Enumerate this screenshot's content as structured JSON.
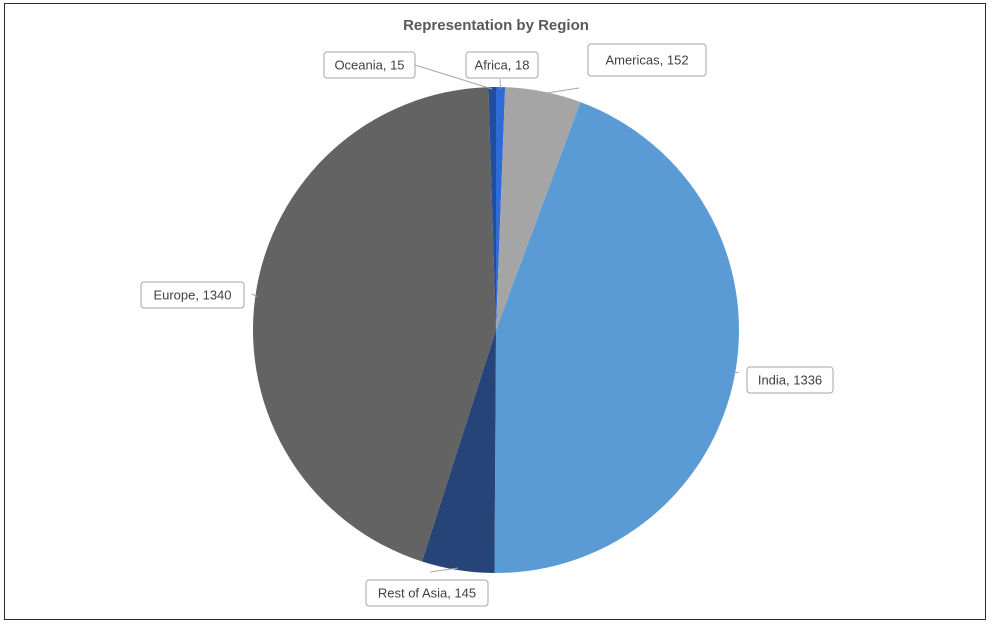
{
  "chart_data": {
    "type": "pie",
    "title": "Representation by Region",
    "legend": "none",
    "slices": [
      {
        "label": "Africa",
        "value": 18,
        "color": "#2f6bd6",
        "data_label": "Africa, 18"
      },
      {
        "label": "Americas",
        "value": 152,
        "color": "#a5a5a5",
        "data_label": "Americas, 152"
      },
      {
        "label": "India",
        "value": 1336,
        "color": "#5b9bd5",
        "data_label": "India, 1336"
      },
      {
        "label": "Rest of Asia",
        "value": 145,
        "color": "#264478",
        "data_label": "Rest of Asia, 145"
      },
      {
        "label": "Europe",
        "value": 1340,
        "color": "#636363",
        "data_label": "Europe, 1340"
      },
      {
        "label": "Oceania",
        "value": 15,
        "color": "#1f4e9e",
        "data_label": "Oceania, 15"
      }
    ]
  }
}
